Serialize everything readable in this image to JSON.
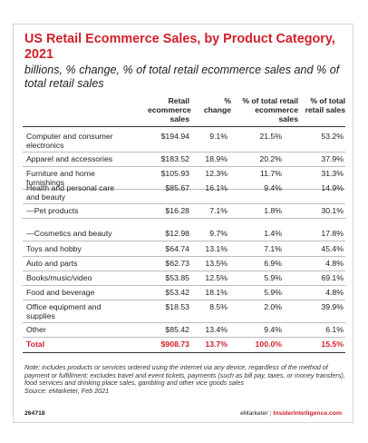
{
  "title": "US Retail Ecommerce Sales, by Product Category, 2021",
  "subtitle": "billions, % change, % of total retail ecommerce sales and % of total retail sales",
  "columns": {
    "sales": "Retail ecommerce sales",
    "change": "% change",
    "share_ecom": "% of total retail ecommerce sales",
    "share_retail": "% of total retail sales"
  },
  "rows": [
    {
      "category": "Computer and consumer electronics",
      "sales": "$194.94",
      "change": "9.1%",
      "share_ecom": "21.5%",
      "share_retail": "53.2%"
    },
    {
      "category": "Apparel and accessories",
      "sales": "$183.52",
      "change": "18.9%",
      "share_ecom": "20.2%",
      "share_retail": "37.9%"
    },
    {
      "category": "Furniture and home furnishings",
      "sales": "$105.93",
      "change": "12.3%",
      "share_ecom": "11.7%",
      "share_retail": "31.3%"
    },
    {
      "category": "Health and personal care and beauty",
      "sales": "$85.67",
      "change": "16.1%",
      "share_ecom": "9.4%",
      "share_retail": "14.9%"
    },
    {
      "category": "—Pet products",
      "sales": "$16.28",
      "change": "7.1%",
      "share_ecom": "1.8%",
      "share_retail": "30.1%"
    },
    {
      "category": "—Cosmetics and beauty",
      "sales": "$12.98",
      "change": "9.7%",
      "share_ecom": "1.4%",
      "share_retail": "17.8%"
    },
    {
      "category": "Toys and hobby",
      "sales": "$64.74",
      "change": "13.1%",
      "share_ecom": "7.1%",
      "share_retail": "45.4%"
    },
    {
      "category": "Auto and parts",
      "sales": "$62.73",
      "change": "13.5%",
      "share_ecom": "6.9%",
      "share_retail": "4.8%"
    },
    {
      "category": "Books/music/video",
      "sales": "$53.85",
      "change": "12.5%",
      "share_ecom": "5.9%",
      "share_retail": "69.1%"
    },
    {
      "category": "Food and beverage",
      "sales": "$53.42",
      "change": "18.1%",
      "share_ecom": "5.9%",
      "share_retail": "4.8%"
    },
    {
      "category": "Office equipment and supplies",
      "sales": "$18.53",
      "change": "8.5%",
      "share_ecom": "2.0%",
      "share_retail": "39.9%"
    },
    {
      "category": "Other",
      "sales": "$85.42",
      "change": "13.4%",
      "share_ecom": "9.4%",
      "share_retail": "6.1%"
    }
  ],
  "total": {
    "category": "Total",
    "sales": "$908.73",
    "change": "13.7%",
    "share_ecom": "100.0%",
    "share_retail": "15.5%"
  },
  "note": "Note: includes products or services ordered using the internet via any device, regardless of the method of payment or fulfillment; excludes travel and event tickets, payments (such as bill pay, taxes, or money transfers), food services and drinking place sales, gambling and other vice goods sales",
  "source": "Source: eMarketer, Feb 2021",
  "footer": {
    "id": "264718",
    "brand": "eMarketer",
    "site": "InsiderIntelligence.com"
  },
  "colors": {
    "accent": "#d1202b",
    "text": "#222222",
    "rule": "#bdbdbd"
  }
}
